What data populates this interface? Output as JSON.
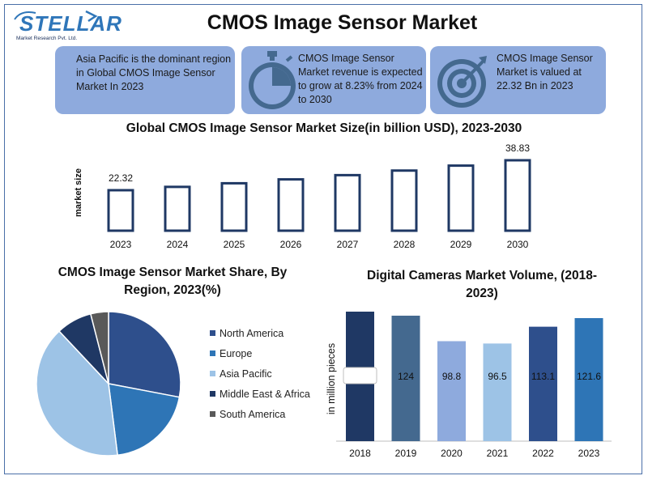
{
  "logo": {
    "name": "STELLAR",
    "tagline": "Market Research Pvt. Ltd."
  },
  "title": "CMOS Image Sensor Market",
  "cards": [
    {
      "text": "Asia Pacific is the dominant region in Global CMOS Image Sensor Market In 2023",
      "icon": "none"
    },
    {
      "text": "CMOS Image Sensor Market revenue is expected to grow at 8.23% from 2024 to 2030",
      "icon": "stopwatch-icon"
    },
    {
      "text": "CMOS Image Sensor Market is valued at 22.32 Bn in 2023",
      "icon": "target-icon"
    }
  ],
  "colors": {
    "card": "#8eaadd",
    "bar_outline": "#1f3864",
    "north_america": "#2e4f8c",
    "europe": "#2e75b6",
    "asia_pacific": "#9dc3e6",
    "middle_east_africa": "#1f3864",
    "south_america": "#595959"
  },
  "chart_data": [
    {
      "type": "bar",
      "title": "Global CMOS Image Sensor Market Size(in billion USD), 2023-2030",
      "ylabel": "market size",
      "categories": [
        "2023",
        "2024",
        "2025",
        "2026",
        "2027",
        "2028",
        "2029",
        "2030"
      ],
      "values": [
        22.32,
        24.16,
        26.15,
        28.3,
        30.63,
        33.15,
        35.88,
        38.83
      ],
      "data_labels": [
        "22.32",
        "",
        "",
        "",
        "",
        "",
        "",
        "38.83"
      ],
      "style": "outlined"
    },
    {
      "type": "pie",
      "title": "CMOS Image Sensor Market Share, By Region, 2023(%)",
      "labels": [
        "North America",
        "Europe",
        "Asia Pacific",
        "Middle East & Africa",
        "South America"
      ],
      "values": [
        28,
        20,
        40,
        8,
        4
      ],
      "legend": "right"
    },
    {
      "type": "bar",
      "title": "Digital Cameras Market Volume, (2018-2023)",
      "ylabel": "in million pieces",
      "categories": [
        "2018",
        "2019",
        "2020",
        "2021",
        "2022",
        "2023"
      ],
      "values": [
        128,
        124,
        98.8,
        96.5,
        113.1,
        121.6
      ],
      "data_labels": [
        "",
        "124",
        "98.8",
        "96.5",
        "113.1",
        "121.6"
      ],
      "bar_colors": [
        "#1f3864",
        "#44698f",
        "#8eaadd",
        "#9dc3e6",
        "#2e4f8c",
        "#2e75b6"
      ]
    }
  ]
}
